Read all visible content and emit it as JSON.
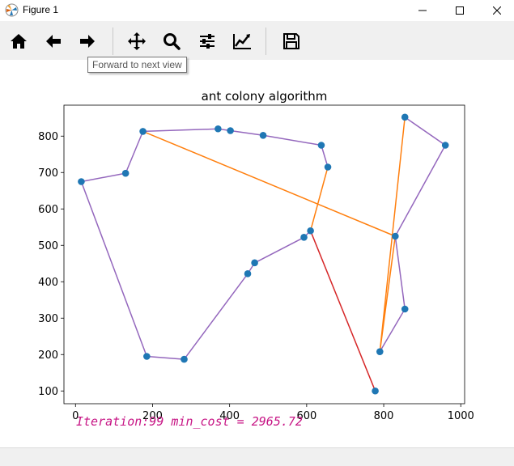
{
  "window": {
    "title": "Figure 1"
  },
  "toolbar": {
    "buttons": [
      {
        "name": "home-icon"
      },
      {
        "name": "back-icon"
      },
      {
        "name": "forward-icon"
      },
      {
        "name": "pan-icon"
      },
      {
        "name": "zoom-icon"
      },
      {
        "name": "configure-subplots-icon"
      },
      {
        "name": "edit-axis-icon"
      },
      {
        "name": "save-icon"
      }
    ],
    "tooltip": "Forward to next view"
  },
  "annotation": "Iteration:99 min_cost = 2965.72",
  "chart_data": {
    "type": "line",
    "title": "ant colony algorithm",
    "xlim": [
      -30,
      1010
    ],
    "ylim": [
      65,
      885
    ],
    "xticks": [
      0,
      200,
      400,
      600,
      800,
      1000
    ],
    "yticks": [
      100,
      200,
      300,
      400,
      500,
      600,
      700,
      800
    ],
    "points": [
      [
        15,
        675
      ],
      [
        130,
        698
      ],
      [
        175,
        813
      ],
      [
        370,
        820
      ],
      [
        402,
        815
      ],
      [
        487,
        802
      ],
      [
        638,
        775
      ],
      [
        655,
        715
      ],
      [
        855,
        852
      ],
      [
        960,
        775
      ],
      [
        830,
        525
      ],
      [
        855,
        325
      ],
      [
        790,
        208
      ],
      [
        778,
        100
      ],
      [
        610,
        540
      ],
      [
        593,
        522
      ],
      [
        465,
        452
      ],
      [
        447,
        422
      ],
      [
        282,
        187
      ],
      [
        185,
        195
      ]
    ],
    "series": [
      {
        "color": "#1f77b4",
        "kind": "scatter",
        "values": [
          [
            15,
            675
          ],
          [
            130,
            698
          ],
          [
            175,
            813
          ],
          [
            370,
            820
          ],
          [
            402,
            815
          ],
          [
            487,
            802
          ],
          [
            638,
            775
          ],
          [
            655,
            715
          ],
          [
            855,
            852
          ],
          [
            960,
            775
          ],
          [
            830,
            525
          ],
          [
            855,
            325
          ],
          [
            790,
            208
          ],
          [
            778,
            100
          ],
          [
            610,
            540
          ],
          [
            593,
            522
          ],
          [
            465,
            452
          ],
          [
            447,
            422
          ],
          [
            282,
            187
          ],
          [
            185,
            195
          ]
        ]
      },
      {
        "color": "#d62728",
        "kind": "line",
        "values": [
          [
            610,
            540
          ],
          [
            778,
            100
          ]
        ]
      },
      {
        "color": "#ff7f0e",
        "kind": "line",
        "values": [
          [
            175,
            813
          ],
          [
            830,
            525
          ],
          [
            790,
            208
          ],
          [
            855,
            852
          ]
        ]
      },
      {
        "color": "#ff7f0e",
        "kind": "line",
        "values": [
          [
            610,
            540
          ],
          [
            655,
            715
          ]
        ]
      },
      {
        "color": "#9467bd",
        "kind": "line",
        "values": [
          [
            185,
            195
          ],
          [
            15,
            675
          ],
          [
            130,
            698
          ],
          [
            175,
            813
          ],
          [
            370,
            820
          ],
          [
            402,
            815
          ],
          [
            487,
            802
          ],
          [
            638,
            775
          ],
          [
            655,
            715
          ]
        ]
      },
      {
        "color": "#9467bd",
        "kind": "line",
        "values": [
          [
            185,
            195
          ],
          [
            282,
            187
          ],
          [
            447,
            422
          ],
          [
            465,
            452
          ],
          [
            593,
            522
          ],
          [
            610,
            540
          ]
        ]
      },
      {
        "color": "#9467bd",
        "kind": "line",
        "values": [
          [
            855,
            852
          ],
          [
            960,
            775
          ],
          [
            830,
            525
          ],
          [
            855,
            325
          ],
          [
            790,
            208
          ]
        ]
      }
    ]
  }
}
